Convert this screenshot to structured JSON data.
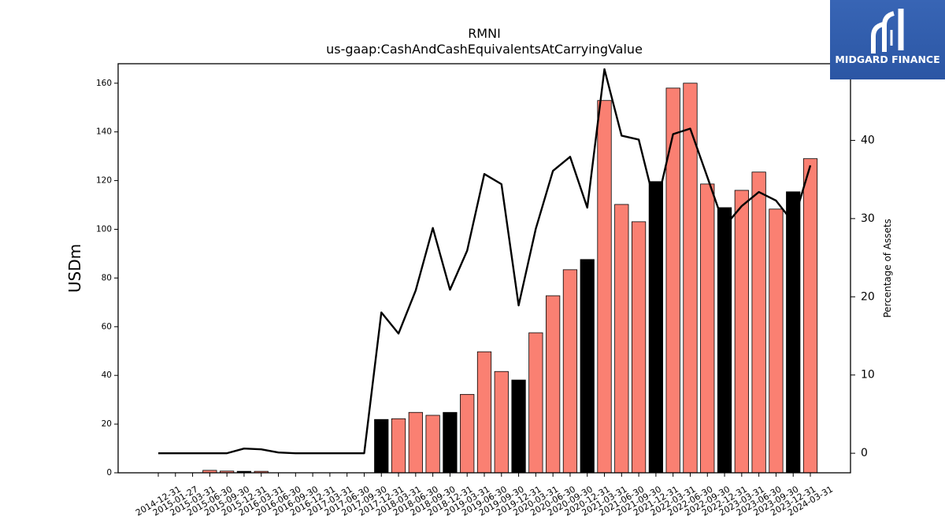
{
  "logo": {
    "text": "MIDGARD FINANCE",
    "background": "#2f5aa8",
    "icon": "midgard-m-icon"
  },
  "chart_data": {
    "type": "bar",
    "title": "RMNI",
    "subtitle": "us-gaap:CashAndCashEquivalentsAtCarryingValue",
    "ylabel": "USDm",
    "y2label": "Percentage of Assets",
    "categories": [
      "2014-12-31",
      "2015-01-27",
      "2015-03-31",
      "2015-06-30",
      "2015-09-30",
      "2015-12-31",
      "2016-03-31",
      "2016-06-30",
      "2016-09-30",
      "2016-12-31",
      "2017-03-31",
      "2017-06-30",
      "2017-09-30",
      "2017-12-31",
      "2018-03-31",
      "2018-06-30",
      "2018-09-30",
      "2018-12-31",
      "2019-03-31",
      "2019-06-30",
      "2019-09-30",
      "2019-12-31",
      "2020-03-31",
      "2020-06-30",
      "2020-09-30",
      "2020-12-31",
      "2021-03-31",
      "2021-06-30",
      "2021-09-30",
      "2021-12-31",
      "2022-03-31",
      "2022-06-30",
      "2022-09-30",
      "2022-12-31",
      "2023-03-31",
      "2023-06-30",
      "2023-09-30",
      "2023-12-31",
      "2024-03-31"
    ],
    "series": [
      {
        "kind": "bar",
        "axis": "left",
        "values": [
          0,
          0,
          0,
          1.0,
          0.7,
          0.6,
          0.6,
          0,
          0,
          0,
          0,
          0,
          0,
          21.9,
          22.2,
          24.8,
          23.6,
          24.8,
          32.2,
          49.7,
          41.6,
          38.1,
          57.5,
          72.7,
          83.4,
          87.6,
          152.9,
          110.2,
          103.1,
          119.6,
          158.0,
          160.0,
          118.6,
          108.9,
          116.0,
          123.5,
          108.3,
          115.4,
          129.0
        ],
        "color": "#FA8072",
        "edge_color": "#000000",
        "highlight_color": "#000000",
        "highlight_categories": [
          "2015-12-31",
          "2017-12-31",
          "2018-12-31",
          "2019-12-31",
          "2020-12-31",
          "2021-12-31",
          "2022-12-31",
          "2023-12-31"
        ]
      },
      {
        "kind": "line",
        "axis": "right",
        "values": [
          0,
          0,
          0,
          0,
          0,
          0.6,
          0.5,
          0.1,
          0,
          0,
          0,
          0,
          0,
          18.0,
          15.3,
          20.8,
          28.8,
          20.9,
          25.9,
          35.7,
          34.4,
          18.9,
          28.7,
          36.1,
          37.9,
          31.4,
          49.1,
          40.6,
          40.1,
          31.3,
          40.8,
          41.5,
          35.3,
          29.0,
          31.6,
          33.4,
          32.3,
          29.5,
          36.8
        ],
        "color": "#000000"
      }
    ],
    "ylim": [
      0,
      168
    ],
    "y2lim": [
      -2.5,
      49.8
    ],
    "yticks": [
      0,
      20,
      40,
      60,
      80,
      100,
      120,
      140,
      160
    ],
    "y2ticks": [
      0,
      10,
      20,
      30,
      40
    ],
    "grid": false
  }
}
